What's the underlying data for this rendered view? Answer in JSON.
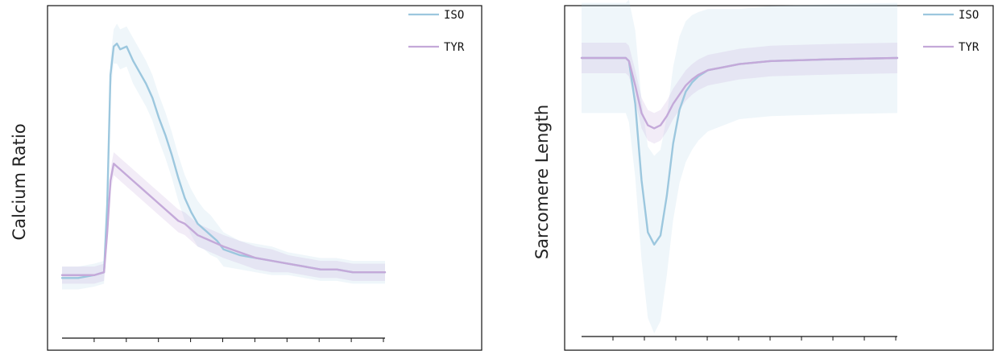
{
  "colors": {
    "iso": "#9cc7de",
    "tyr": "#c4a9d9",
    "frame": "#111111"
  },
  "chart_data": [
    {
      "type": "line",
      "ylabel": "Calcium Ratio",
      "xlabel": "",
      "grid": false,
      "legend_placement": "top-right",
      "xlim": [
        0,
        100
      ],
      "ylim": [
        0,
        100
      ],
      "x_tick_count": 10,
      "series": [
        {
          "name": "ISO",
          "x": [
            0,
            5,
            10,
            13,
            14,
            15,
            16,
            17,
            18,
            20,
            22,
            24,
            26,
            28,
            30,
            32,
            34,
            36,
            38,
            40,
            42,
            44,
            46,
            48,
            50,
            55,
            60,
            65,
            70,
            75,
            80,
            85,
            90,
            95,
            100
          ],
          "values": [
            14,
            14,
            15,
            16,
            40,
            85,
            95,
            96,
            94,
            95,
            90,
            86,
            82,
            77,
            70,
            64,
            57,
            49,
            42,
            37,
            33,
            31,
            29,
            27,
            24,
            22,
            21,
            20,
            19,
            18,
            17,
            17,
            16,
            16,
            16
          ],
          "band": [
            4,
            4,
            4,
            4,
            5,
            6,
            6,
            7,
            7,
            7,
            8,
            8,
            8,
            8,
            8,
            8,
            8,
            8,
            8,
            8,
            8,
            7,
            7,
            6,
            6,
            5,
            5,
            5,
            4,
            4,
            4,
            4,
            4,
            4,
            4
          ]
        },
        {
          "name": "TYR",
          "x": [
            0,
            5,
            10,
            13,
            14,
            15,
            16,
            17,
            18,
            20,
            22,
            24,
            26,
            28,
            30,
            32,
            34,
            36,
            38,
            40,
            42,
            44,
            46,
            48,
            50,
            55,
            60,
            65,
            70,
            75,
            80,
            85,
            90,
            95,
            100
          ],
          "values": [
            15,
            15,
            15,
            16,
            30,
            48,
            54,
            53,
            52,
            50,
            48,
            46,
            44,
            42,
            40,
            38,
            36,
            34,
            33,
            31,
            29,
            28,
            27,
            26,
            25,
            23,
            21,
            20,
            19,
            18,
            17,
            17,
            16,
            16,
            16
          ],
          "band": [
            3,
            3,
            3,
            3,
            4,
            4,
            4,
            4,
            4,
            4,
            4,
            4,
            4,
            4,
            4,
            4,
            4,
            4,
            4,
            4,
            4,
            4,
            4,
            4,
            4,
            4,
            4,
            4,
            3,
            3,
            3,
            3,
            3,
            3,
            3
          ]
        }
      ]
    },
    {
      "type": "line",
      "ylabel": "Sarcomere Length",
      "xlabel": "",
      "grid": false,
      "legend_placement": "top-right",
      "xlim": [
        0,
        100
      ],
      "ylim": [
        0,
        100
      ],
      "x_tick_count": 10,
      "series": [
        {
          "name": "ISO",
          "x": [
            0,
            10,
            14,
            15,
            17,
            19,
            21,
            23,
            25,
            27,
            29,
            31,
            33,
            35,
            37,
            40,
            45,
            50,
            55,
            60,
            70,
            80,
            90,
            100
          ],
          "values": [
            85,
            85,
            85,
            84,
            70,
            45,
            28,
            24,
            27,
            40,
            57,
            68,
            74,
            77,
            79,
            81,
            82,
            83,
            83.5,
            84,
            84.3,
            84.6,
            84.8,
            85
          ],
          "band": [
            18,
            18,
            18,
            20,
            24,
            26,
            28,
            29,
            28,
            26,
            25,
            24,
            23,
            22,
            21,
            20,
            19,
            18,
            18,
            18,
            18,
            18,
            18,
            18
          ]
        },
        {
          "name": "TYR",
          "x": [
            0,
            10,
            14,
            15,
            17,
            19,
            21,
            23,
            25,
            27,
            29,
            31,
            33,
            35,
            37,
            40,
            45,
            50,
            55,
            60,
            70,
            80,
            90,
            100
          ],
          "values": [
            85,
            85,
            85,
            84,
            76,
            67,
            63,
            62,
            63,
            66,
            70,
            73,
            76,
            78,
            79.5,
            81,
            82,
            83,
            83.5,
            84,
            84.3,
            84.6,
            84.8,
            85
          ],
          "band": [
            5,
            5,
            5,
            5,
            5,
            5,
            5,
            5,
            5,
            5,
            5,
            5,
            5,
            5,
            5,
            5,
            5,
            5,
            5,
            5,
            5,
            5,
            5,
            5
          ]
        }
      ]
    }
  ]
}
